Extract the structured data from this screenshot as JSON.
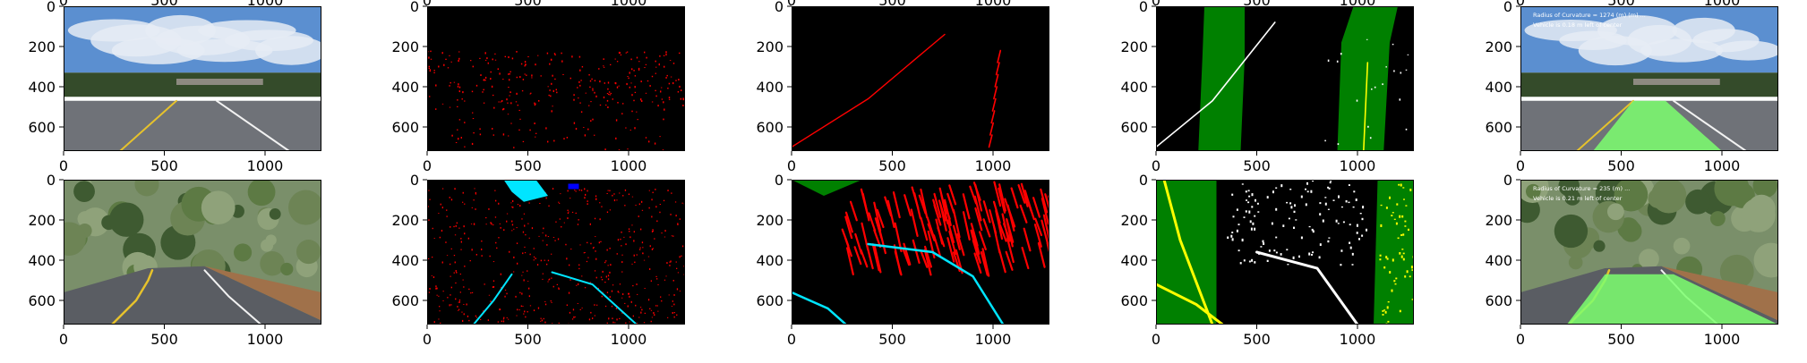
{
  "chart_data": {
    "type": "image-grid",
    "rows": 2,
    "cols": 5,
    "xlim": [
      0,
      1280
    ],
    "ylim": [
      720,
      0
    ],
    "xticks": [
      0,
      500,
      1000
    ],
    "yticks": [
      0,
      200,
      400,
      600
    ],
    "panels": [
      {
        "row": 0,
        "col": 0,
        "content": "road-photo-highway",
        "overlay_text": []
      },
      {
        "row": 0,
        "col": 1,
        "content": "red-edge-points",
        "overlay_text": []
      },
      {
        "row": 0,
        "col": 2,
        "content": "warped-red-lane-lines",
        "overlay_text": []
      },
      {
        "row": 0,
        "col": 3,
        "content": "sliding-window-green-boxes",
        "overlay_text": []
      },
      {
        "row": 0,
        "col": 4,
        "content": "lane-overlay-highway",
        "overlay_text": [
          "Radius of Curvature = 1274 (m) (m) ...",
          "Vehicle is 0.18 m left of center"
        ]
      },
      {
        "row": 1,
        "col": 0,
        "content": "road-photo-mountain",
        "overlay_text": []
      },
      {
        "row": 1,
        "col": 1,
        "content": "red-noise-points-cyan-lanes",
        "overlay_text": []
      },
      {
        "row": 1,
        "col": 2,
        "content": "warped-red-streaks-cyan-curve",
        "overlay_text": []
      },
      {
        "row": 1,
        "col": 3,
        "content": "sliding-window-yellow-white",
        "overlay_text": []
      },
      {
        "row": 1,
        "col": 4,
        "content": "lane-overlay-mountain",
        "overlay_text": [
          "Radius of Curvature = 235 (m) ...",
          "Vehicle is 0.21 m left of center"
        ]
      }
    ]
  },
  "colors": {
    "edge_red": "#ff0000",
    "lane_green": "#008000",
    "overlay_green": "#7dff6e",
    "lane_yellow": "#ffff00",
    "lane_cyan": "#00e5ff",
    "lane_white": "#ffffff",
    "sky_blue": "#5b8fd0",
    "asphalt": "#6f7278",
    "tree_dark": "#344b2a"
  }
}
